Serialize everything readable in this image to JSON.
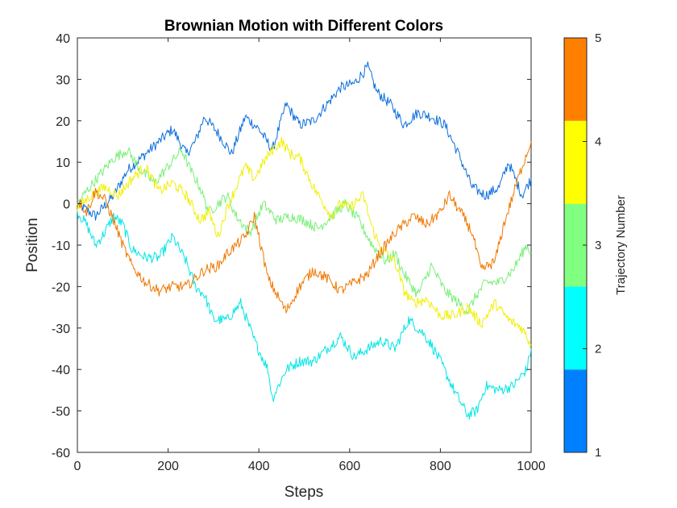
{
  "chart_data": {
    "type": "line",
    "title": "Brownian Motion with Different Colors",
    "xlabel": "Steps",
    "ylabel": "Position",
    "xlim": [
      0,
      1000
    ],
    "ylim": [
      -60,
      40
    ],
    "xticks": [
      0,
      200,
      400,
      600,
      800,
      1000
    ],
    "yticks": [
      40,
      30,
      20,
      10,
      0,
      -10,
      -20,
      -30,
      -40,
      -50,
      -60
    ],
    "grid": false,
    "colorbar": {
      "label": "Trajectory Number",
      "ticks": [
        1,
        2,
        3,
        4,
        5
      ],
      "colors": [
        "#0080ff",
        "#00ffff",
        "#80ff80",
        "#ffff00",
        "#ff8000"
      ]
    },
    "series": [
      {
        "color": "#0a6fdc",
        "x": [
          0,
          40,
          80,
          110,
          150,
          180,
          210,
          240,
          260,
          280,
          310,
          340,
          370,
          400,
          430,
          460,
          490,
          520,
          550,
          580,
          610,
          640,
          660,
          690,
          720,
          750,
          780,
          810,
          840,
          870,
          900,
          930,
          950,
          980,
          1000
        ],
        "y": [
          0,
          -3,
          2,
          8,
          12,
          15,
          18,
          12,
          15,
          21,
          17,
          12,
          21,
          18,
          13,
          24,
          19,
          20,
          24,
          28,
          29,
          33,
          27,
          24,
          19,
          22,
          21,
          19,
          12,
          4,
          2,
          4,
          10,
          2,
          6
        ]
      },
      {
        "color": "#00e5e5",
        "x": [
          0,
          20,
          40,
          60,
          80,
          100,
          120,
          150,
          180,
          210,
          240,
          260,
          280,
          300,
          330,
          360,
          390,
          420,
          430,
          460,
          490,
          520,
          550,
          580,
          610,
          640,
          670,
          700,
          730,
          760,
          780,
          800,
          830,
          860,
          880,
          900,
          930,
          960,
          990,
          1000
        ],
        "y": [
          -2,
          -5,
          -10,
          -7,
          -3,
          -5,
          -11,
          -13,
          -13,
          -8,
          -14,
          -20,
          -22,
          -28,
          -28,
          -24,
          -33,
          -40,
          -47,
          -40,
          -38,
          -38,
          -35,
          -32,
          -37,
          -35,
          -33,
          -35,
          -28,
          -31,
          -34,
          -38,
          -45,
          -51,
          -50,
          -44,
          -45,
          -44,
          -40,
          -35
        ]
      },
      {
        "color": "#78f078",
        "x": [
          0,
          20,
          50,
          80,
          110,
          140,
          170,
          200,
          230,
          250,
          270,
          290,
          310,
          330,
          350,
          380,
          410,
          440,
          470,
          500,
          530,
          560,
          590,
          620,
          650,
          680,
          700,
          720,
          750,
          780,
          810,
          840,
          860,
          880,
          900,
          930,
          960,
          990,
          1000
        ],
        "y": [
          0,
          3,
          7,
          11,
          13,
          8,
          5,
          9,
          13,
          8,
          4,
          -2,
          0,
          2,
          -3,
          -7,
          0,
          -4,
          -3,
          -4,
          -6,
          -3,
          0,
          -4,
          -10,
          -14,
          -12,
          -17,
          -22,
          -15,
          -21,
          -24,
          -26,
          -22,
          -19,
          -19,
          -16,
          -10,
          -12
        ]
      },
      {
        "color": "#f0f000",
        "x": [
          0,
          30,
          60,
          90,
          120,
          150,
          180,
          210,
          240,
          270,
          290,
          310,
          330,
          350,
          370,
          390,
          410,
          430,
          450,
          470,
          490,
          520,
          560,
          580,
          600,
          630,
          650,
          670,
          700,
          720,
          740,
          770,
          800,
          830,
          860,
          890,
          920,
          950,
          980,
          1000
        ],
        "y": [
          -1,
          2,
          4,
          2,
          6,
          9,
          3,
          5,
          2,
          -4,
          -2,
          -8,
          -1,
          4,
          9,
          6,
          10,
          13,
          15,
          12,
          11,
          4,
          -3,
          0,
          -1,
          2,
          -6,
          -11,
          -14,
          -21,
          -24,
          -23,
          -27,
          -27,
          -25,
          -29,
          -24,
          -28,
          -30,
          -34
        ]
      },
      {
        "color": "#f07800",
        "x": [
          0,
          20,
          40,
          60,
          80,
          100,
          120,
          150,
          180,
          210,
          240,
          260,
          280,
          310,
          330,
          350,
          370,
          390,
          420,
          440,
          460,
          490,
          520,
          550,
          580,
          610,
          640,
          660,
          680,
          700,
          720,
          740,
          770,
          800,
          820,
          850,
          870,
          890,
          920,
          940,
          960,
          980,
          1000
        ],
        "y": [
          1,
          -2,
          3,
          1,
          -4,
          -10,
          -15,
          -19,
          -21,
          -20,
          -20,
          -18,
          -16,
          -15,
          -12,
          -10,
          -8,
          -3,
          -18,
          -22,
          -26,
          -20,
          -16,
          -18,
          -21,
          -19,
          -17,
          -13,
          -10,
          -7,
          -5,
          -3,
          -5,
          -2,
          2,
          -3,
          -7,
          -16,
          -14,
          -5,
          2,
          9,
          15
        ]
      }
    ]
  }
}
